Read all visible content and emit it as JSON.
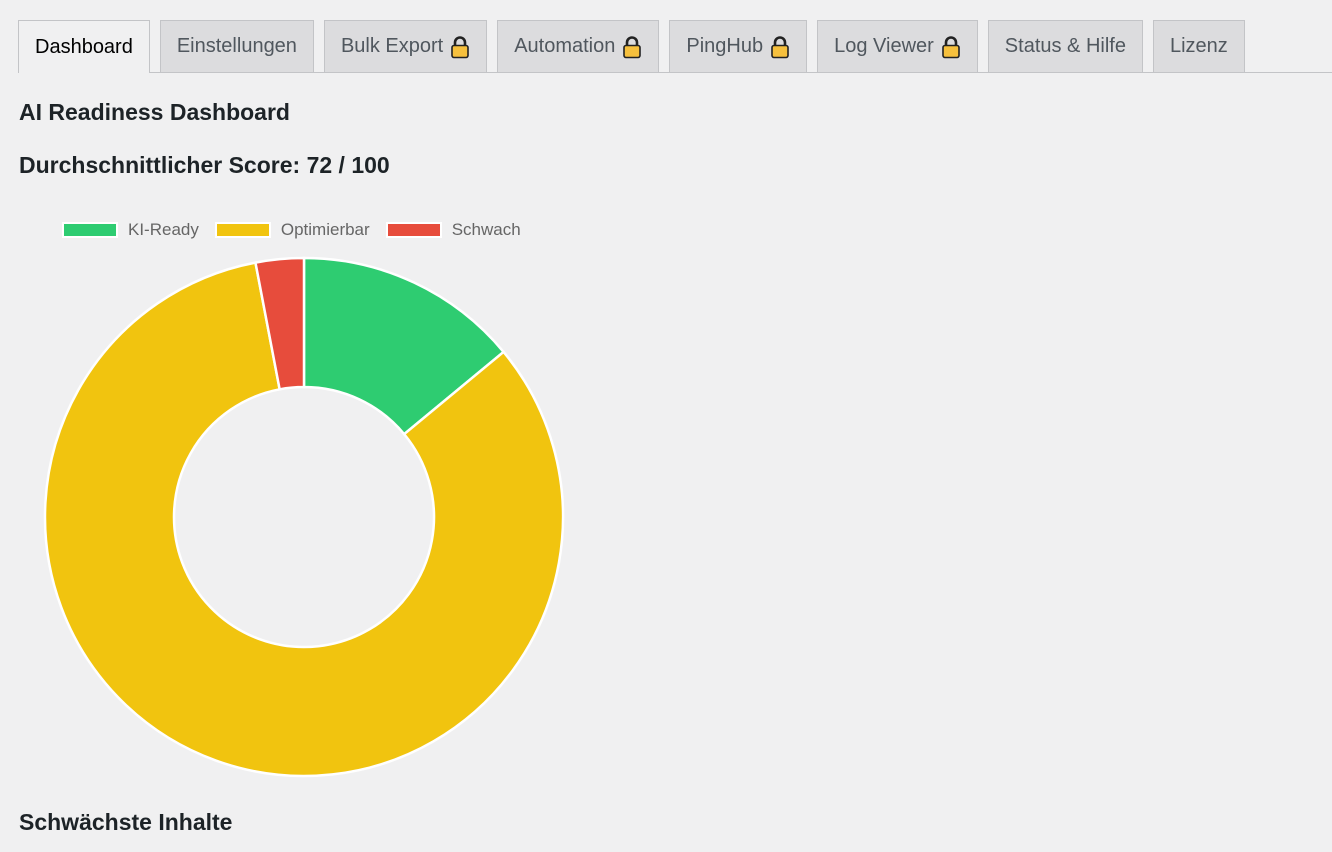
{
  "tabs": [
    {
      "label": "Dashboard",
      "active": true,
      "locked": false,
      "name": "tab-dashboard"
    },
    {
      "label": "Einstellungen",
      "active": false,
      "locked": false,
      "name": "tab-einstellungen"
    },
    {
      "label": "Bulk Export",
      "active": false,
      "locked": true,
      "name": "tab-bulk-export"
    },
    {
      "label": "Automation",
      "active": false,
      "locked": true,
      "name": "tab-automation"
    },
    {
      "label": "PingHub",
      "active": false,
      "locked": true,
      "name": "tab-pinghub"
    },
    {
      "label": "Log Viewer",
      "active": false,
      "locked": true,
      "name": "tab-log-viewer"
    },
    {
      "label": "Status & Hilfe",
      "active": false,
      "locked": false,
      "name": "tab-status-hilfe"
    },
    {
      "label": "Lizenz",
      "active": false,
      "locked": false,
      "name": "tab-lizenz"
    }
  ],
  "page": {
    "title": "AI Readiness Dashboard",
    "score_text": "Durchschnittlicher Score: 72 / 100",
    "weakest_heading": "Schwächste Inhalte"
  },
  "chart_data": {
    "type": "pie",
    "variant": "doughnut",
    "categories": [
      "KI-Ready",
      "Optimierbar",
      "Schwach"
    ],
    "values": [
      14,
      83,
      3
    ],
    "colors": [
      "#2ecc71",
      "#f1c40f",
      "#e74c3c"
    ],
    "legend_position": "top"
  }
}
